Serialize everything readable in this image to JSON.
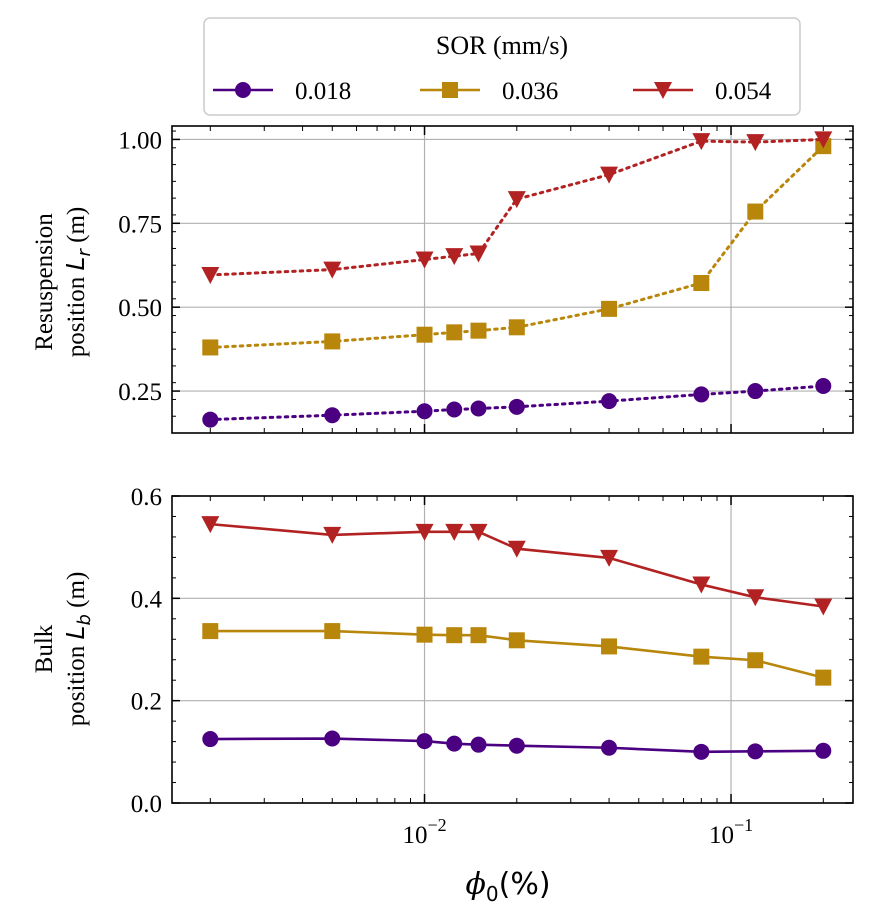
{
  "chart_data": [
    {
      "type": "line",
      "name": "resuspension",
      "xscale": "log",
      "xlim": [
        0.0015,
        0.25
      ],
      "ylim": [
        0.125,
        1.04
      ],
      "yticks": [
        0.25,
        0.5,
        0.75,
        1.0
      ],
      "ytick_labels": [
        "0.25",
        "0.50",
        "0.75",
        "1.00"
      ],
      "ylabel_line1": "Resuspension",
      "ylabel_line2_prefix": "position ",
      "ylabel_var": "L",
      "ylabel_sub": "r",
      "ylabel_unit": " (m)",
      "linestyle": "dotted",
      "grid": true,
      "x": [
        0.002,
        0.005,
        0.01,
        0.0125,
        0.015,
        0.02,
        0.04,
        0.08,
        0.12,
        0.2
      ],
      "series": [
        {
          "name": "0.018",
          "values": [
            0.165,
            0.178,
            0.19,
            0.195,
            0.198,
            0.203,
            0.22,
            0.24,
            0.25,
            0.265
          ]
        },
        {
          "name": "0.036",
          "values": [
            0.38,
            0.398,
            0.418,
            0.425,
            0.43,
            0.44,
            0.495,
            0.572,
            0.785,
            0.98
          ]
        },
        {
          "name": "0.054",
          "values": [
            0.596,
            0.612,
            0.642,
            0.652,
            0.66,
            0.822,
            0.895,
            0.995,
            0.992,
            1.0
          ]
        }
      ]
    },
    {
      "type": "line",
      "name": "bulk",
      "xscale": "log",
      "xlim": [
        0.0015,
        0.25
      ],
      "ylim": [
        0.0,
        0.6
      ],
      "yticks": [
        0.0,
        0.2,
        0.4,
        0.6
      ],
      "ytick_labels": [
        "0.0",
        "0.2",
        "0.4",
        "0.6"
      ],
      "ylabel_line1": "Bulk",
      "ylabel_line2_prefix": "position ",
      "ylabel_var": "L",
      "ylabel_sub": "b",
      "ylabel_unit": " (m)",
      "linestyle": "solid",
      "grid": true,
      "xlabel_var": "ϕ",
      "xlabel_sub": "0",
      "xlabel_unit": "(%)",
      "xtick_labels": [
        {
          "base": "10",
          "exp": "−2"
        },
        {
          "base": "10",
          "exp": "−1"
        }
      ],
      "x": [
        0.002,
        0.005,
        0.01,
        0.0125,
        0.015,
        0.02,
        0.04,
        0.08,
        0.12,
        0.2
      ],
      "series": [
        {
          "name": "0.018",
          "values": [
            0.125,
            0.126,
            0.121,
            0.116,
            0.114,
            0.112,
            0.108,
            0.1,
            0.101,
            0.102
          ]
        },
        {
          "name": "0.036",
          "values": [
            0.336,
            0.336,
            0.329,
            0.328,
            0.328,
            0.318,
            0.306,
            0.286,
            0.279,
            0.245
          ]
        },
        {
          "name": "0.054",
          "values": [
            0.545,
            0.524,
            0.53,
            0.53,
            0.53,
            0.497,
            0.479,
            0.427,
            0.402,
            0.384
          ]
        }
      ]
    }
  ],
  "legend": {
    "title": "SOR (mm/s)",
    "placement": "top-center",
    "entries": [
      {
        "label": "0.018",
        "color": "#4b0082",
        "marker": "circle"
      },
      {
        "label": "0.036",
        "color": "#b8860b",
        "marker": "square"
      },
      {
        "label": "0.054",
        "color": "#b22222",
        "marker": "triangle-down"
      }
    ]
  }
}
